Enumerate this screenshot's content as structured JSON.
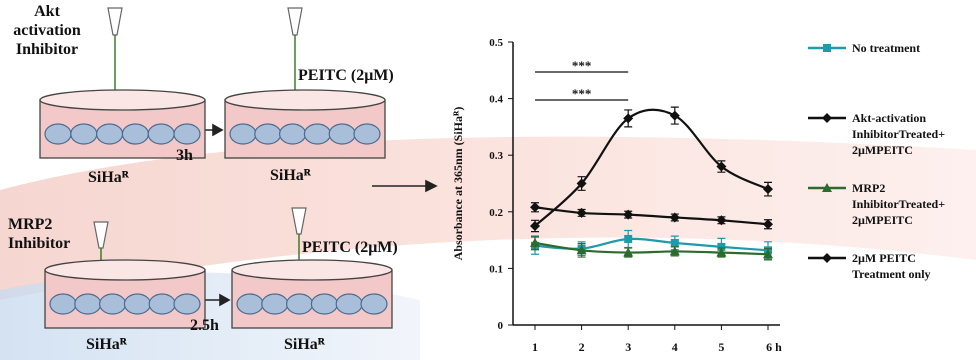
{
  "diagram": {
    "top": {
      "inhibitor": "Akt activation Inhibitor",
      "treatment": "PEITC (2μM)",
      "time": "3h",
      "cell_left": "SiHaᴿ",
      "cell_right": "SiHaᴿ"
    },
    "bottom": {
      "inhibitor": "MRP2 Inhibitor",
      "treatment": "PEITC (2μM)",
      "time": "2.5h",
      "cell_left": "SiHaᴿ",
      "cell_right": "SiHaᴿ"
    }
  },
  "chart_data": {
    "type": "line",
    "y_label": "Absorbance at 365nm (SiHaᴿ)",
    "categories": [
      "1",
      "2",
      "3",
      "4",
      "5",
      "6 h"
    ],
    "ylim": [
      0,
      0.5
    ],
    "yticks": [
      0,
      0.1,
      0.2,
      0.3,
      0.4,
      0.5
    ],
    "annotations": [
      "***",
      "***"
    ],
    "series": [
      {
        "name": "No treatment",
        "color": "#1f9aa8",
        "marker": "square",
        "values": [
          0.14,
          0.135,
          0.152,
          0.145,
          0.138,
          0.132
        ],
        "errors": [
          0.015,
          0.012,
          0.015,
          0.012,
          0.015,
          0.015
        ]
      },
      {
        "name": "Akt-activation InhibitorTreated+ 2µMPEITC",
        "color": "#111111",
        "marker": "diamond",
        "values": [
          0.175,
          0.25,
          0.365,
          0.37,
          0.28,
          0.24
        ],
        "errors": [
          0.01,
          0.012,
          0.015,
          0.015,
          0.01,
          0.012
        ]
      },
      {
        "name": "MRP2 InhibitorTreated+ 2µMPEITC",
        "color": "#2d6a2d",
        "marker": "triangle",
        "values": [
          0.145,
          0.132,
          0.128,
          0.13,
          0.128,
          0.125
        ],
        "errors": [
          0.012,
          0.012,
          0.008,
          0.008,
          0.008,
          0.01
        ]
      },
      {
        "name": "2µM PEITC Treatment only",
        "color": "#111111",
        "marker": "diamond",
        "values": [
          0.208,
          0.198,
          0.195,
          0.19,
          0.185,
          0.178
        ],
        "errors": [
          0.008,
          0.006,
          0.006,
          0.006,
          0.006,
          0.008
        ]
      }
    ]
  }
}
